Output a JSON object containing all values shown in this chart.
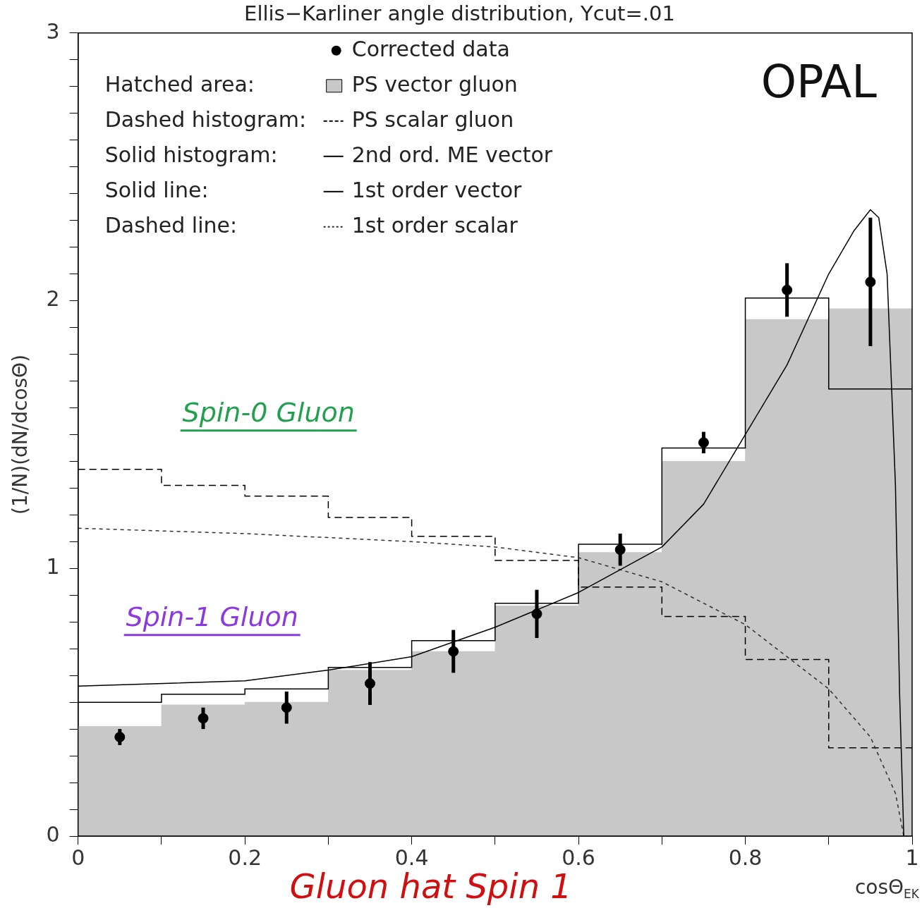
{
  "chart_data": {
    "type": "histogram",
    "title": "Ellis−Karliner angle distribution, Ycut=.01",
    "xlabel": "cosΘ$_{EK}$",
    "ylabel": "(1/N)(dN/dcosΘ)",
    "bins": [
      0,
      0.1,
      0.2,
      0.3,
      0.4,
      0.5,
      0.6,
      0.7,
      0.8,
      0.9,
      1
    ],
    "xlim": [
      0,
      1
    ],
    "ylim": [
      0,
      3
    ],
    "xticks": [
      0,
      {
        "value": 0.1,
        "label": null
      },
      0.2,
      {
        "value": 0.3,
        "label": null
      },
      0.4,
      {
        "value": 0.5,
        "label": null
      },
      0.6,
      {
        "value": 0.7,
        "label": null
      },
      0.8,
      {
        "value": 0.9,
        "label": null
      },
      1
    ],
    "yticks": [
      0,
      {
        "value": 0.1,
        "label": null
      },
      {
        "value": 0.2,
        "label": null
      },
      {
        "value": 0.3,
        "label": null
      },
      {
        "value": 0.4,
        "label": null
      },
      {
        "value": 0.5,
        "label": null
      },
      {
        "value": 0.6,
        "label": null
      },
      {
        "value": 0.7,
        "label": null
      },
      {
        "value": 0.8,
        "label": null
      },
      {
        "value": 0.9,
        "label": null
      },
      1,
      {
        "value": 1.1,
        "label": null
      },
      {
        "value": 1.2,
        "label": null
      },
      {
        "value": 1.3,
        "label": null
      },
      {
        "value": 1.4,
        "label": null
      },
      {
        "value": 1.5,
        "label": null
      },
      {
        "value": 1.6,
        "label": null
      },
      {
        "value": 1.7,
        "label": null
      },
      {
        "value": 1.8,
        "label": null
      },
      {
        "value": 1.9,
        "label": null
      },
      2,
      {
        "value": 2.1,
        "label": null
      },
      {
        "value": 2.2,
        "label": null
      },
      {
        "value": 2.3,
        "label": null
      },
      {
        "value": 2.4,
        "label": null
      },
      {
        "value": 2.5,
        "label": null
      },
      {
        "value": 2.6,
        "label": null
      },
      {
        "value": 2.7,
        "label": null
      },
      {
        "value": 2.8,
        "label": null
      },
      {
        "value": 2.9,
        "label": null
      },
      3
    ],
    "grid": false,
    "legend": "top left",
    "series": [
      {
        "name": "Corrected data",
        "type": "scatter",
        "marker": "circle",
        "color": "#000000",
        "x": [
          0.05,
          0.15,
          0.25,
          0.35,
          0.45,
          0.55,
          0.65,
          0.75,
          0.85,
          0.95
        ],
        "values": [
          0.37,
          0.44,
          0.48,
          0.57,
          0.69,
          0.83,
          1.07,
          1.47,
          2.04,
          2.07
        ],
        "errors": [
          0.03,
          0.04,
          0.06,
          0.08,
          0.08,
          0.09,
          0.06,
          0.04,
          0.1,
          0.24
        ]
      },
      {
        "name": "PS vector gluon",
        "type": "histogram",
        "color": "#c8c8c8",
        "values": [
          0.41,
          0.49,
          0.5,
          0.62,
          0.69,
          0.86,
          1.06,
          1.4,
          1.93,
          1.97
        ]
      },
      {
        "name": "PS scalar gluon",
        "type": "histogram",
        "color": "#000000",
        "line_style": "dashed",
        "values": [
          1.37,
          1.31,
          1.27,
          1.19,
          1.12,
          1.03,
          0.93,
          0.82,
          0.66,
          0.33
        ]
      },
      {
        "name": "2nd ord. ME vector",
        "type": "histogram",
        "color": "#000000",
        "line_style": "solid",
        "values": [
          0.5,
          0.53,
          0.55,
          0.63,
          0.73,
          0.87,
          1.09,
          1.45,
          2.01,
          1.67
        ]
      },
      {
        "name": "1st order vector",
        "type": "line",
        "color": "#000000",
        "line_style": "solid",
        "x": [
          0,
          0.2,
          0.3,
          0.4,
          0.5,
          0.6,
          0.7,
          0.75,
          0.8,
          0.85,
          0.9,
          0.93,
          0.95,
          0.96,
          0.97,
          0.98,
          0.985,
          0.99
        ],
        "values": [
          0.56,
          0.58,
          0.62,
          0.67,
          0.78,
          0.91,
          1.08,
          1.24,
          1.5,
          1.76,
          2.1,
          2.26,
          2.34,
          2.31,
          2.1,
          1.31,
          0.53,
          0
        ]
      },
      {
        "name": "1st order scalar",
        "type": "line",
        "color": "#303030",
        "line_style": "dashed",
        "x": [
          0,
          0.2,
          0.4,
          0.5,
          0.6,
          0.7,
          0.8,
          0.9,
          0.95,
          0.98,
          0.99
        ],
        "values": [
          1.15,
          1.13,
          1.1,
          1.08,
          1.04,
          0.95,
          0.79,
          0.55,
          0.37,
          0.16,
          0
        ]
      }
    ],
    "annotations": [
      "Hatched area:",
      "Dashed histogram:",
      "Solid histogram:",
      "Solid line:",
      "Dashed line:",
      "OPAL",
      "Spin-0 Gluon",
      "Spin-1 Gluon",
      "Gluon hat Spin 1"
    ]
  }
}
